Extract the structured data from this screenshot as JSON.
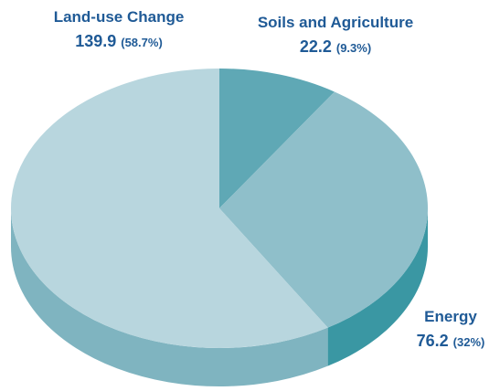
{
  "chart_data": {
    "type": "pie",
    "categories": [
      "Soils and Agriculture",
      "Energy",
      "Land-use Change"
    ],
    "values": [
      22.2,
      76.2,
      139.9
    ],
    "percent_labels": [
      "(9.3%)",
      "(32%)",
      "(58.7%)"
    ],
    "colors": [
      "#5fa8b5",
      "#8fbfca",
      "#b8d6de"
    ],
    "side_colors": [
      "#3e8e9a",
      "#3a97a3",
      "#7fb4c0"
    ]
  }
}
